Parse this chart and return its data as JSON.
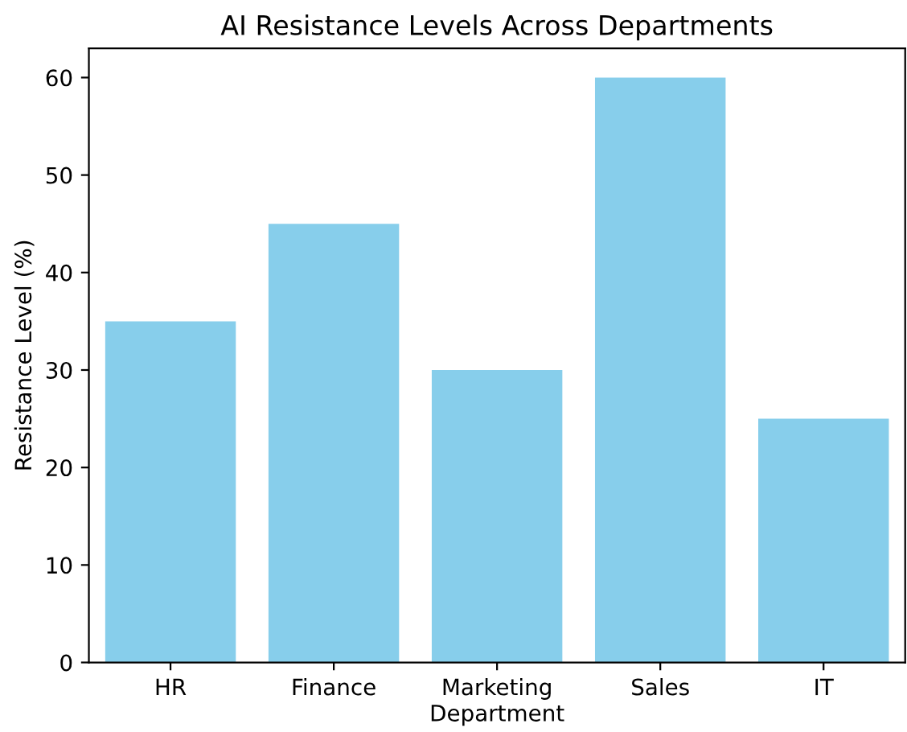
{
  "chart_data": {
    "type": "bar",
    "title": "AI Resistance Levels Across Departments",
    "xlabel": "Department",
    "ylabel": "Resistance Level (%)",
    "categories": [
      "HR",
      "Finance",
      "Marketing",
      "Sales",
      "IT"
    ],
    "values": [
      35,
      45,
      30,
      60,
      25
    ],
    "color": "#87ceeb",
    "ylim": [
      0,
      63
    ],
    "yticks": [
      0,
      10,
      20,
      30,
      40,
      50,
      60
    ],
    "grid": false
  }
}
